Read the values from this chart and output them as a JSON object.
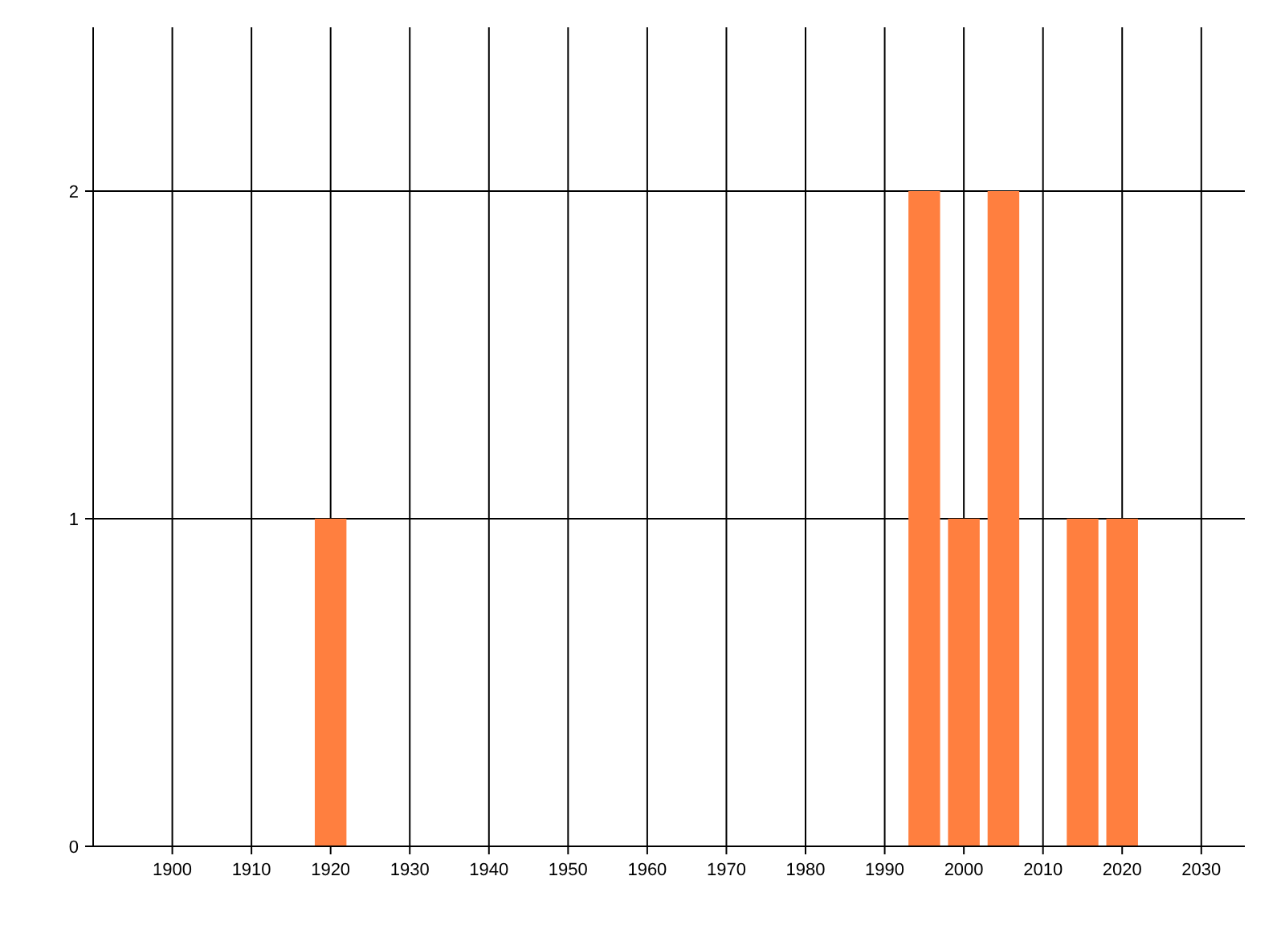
{
  "chart_data": {
    "type": "bar",
    "x": [
      1920,
      1995,
      2000,
      2005,
      2015,
      2020
    ],
    "series": [
      {
        "color": "#ff7f3f",
        "values": [
          1,
          2,
          1,
          2,
          1,
          1
        ]
      }
    ],
    "xlim": [
      1890,
      2035.5
    ],
    "xticks": [
      1900,
      1910,
      1920,
      1930,
      1940,
      1950,
      1960,
      1970,
      1980,
      1990,
      2000,
      2010,
      2020,
      2030
    ],
    "ylim": [
      0,
      2.5
    ],
    "yticks": [
      0,
      1,
      2
    ],
    "grid": true
  }
}
